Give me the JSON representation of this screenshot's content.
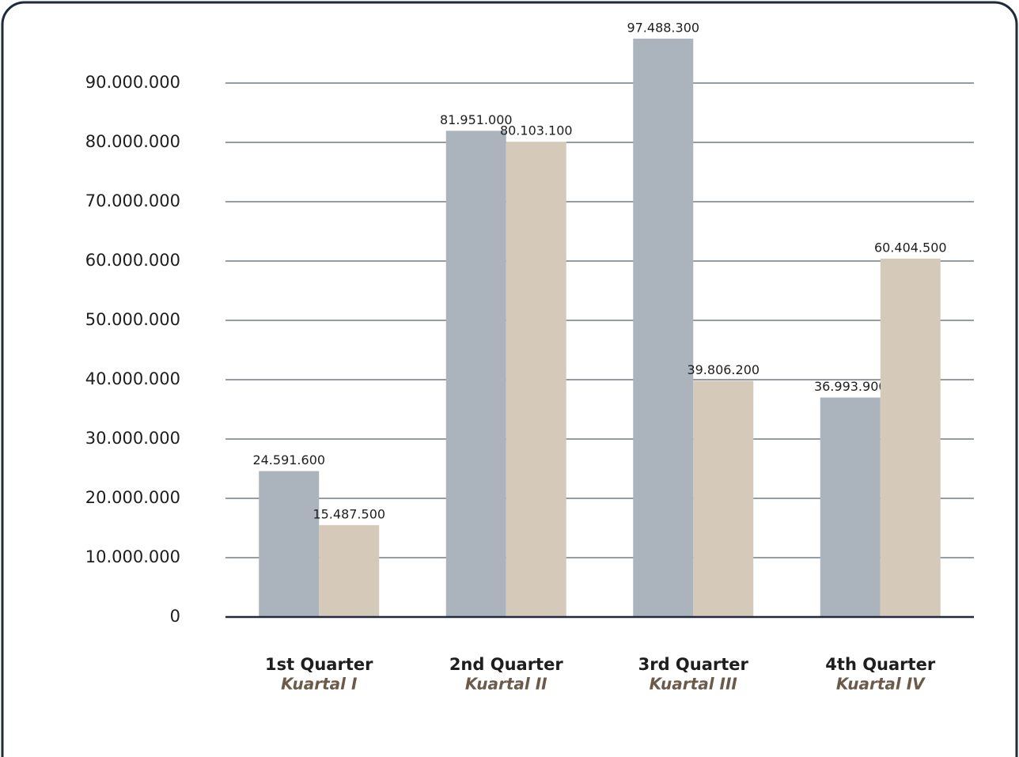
{
  "chart_data": {
    "type": "bar",
    "categories": [
      "1st Quarter",
      "2nd Quarter",
      "3rd Quarter",
      "4th Quarter"
    ],
    "category_sublabels": [
      "Kuartal I",
      "Kuartal II",
      "Kuartal III",
      "Kuartal IV"
    ],
    "series": [
      {
        "color": "#abb3bc",
        "values": [
          24591600,
          81951000,
          97488300,
          36993900
        ],
        "value_labels": [
          "24.591.600",
          "81.951.000",
          "97.488.300",
          "36.993.900"
        ]
      },
      {
        "color": "#d5c9b9",
        "values": [
          15487500,
          80103100,
          39806200,
          60404500
        ],
        "value_labels": [
          "15.487.500",
          "80.103.100",
          "39.806.200",
          "60.404.500"
        ]
      }
    ],
    "ylim": [
      0,
      100000000
    ],
    "yticks": [
      0,
      {
        "value": 10000000,
        "label": "10.000.000"
      },
      {
        "value": 20000000,
        "label": "20.000.000"
      },
      {
        "value": 30000000,
        "label": "30.000.000"
      },
      {
        "value": 40000000,
        "label": "40.000.000"
      },
      {
        "value": 50000000,
        "label": "50.000.000"
      },
      {
        "value": 60000000,
        "label": "60.000.000"
      },
      {
        "value": 70000000,
        "label": "70.000.000"
      },
      {
        "value": 80000000,
        "label": "80.000.000"
      },
      {
        "value": 90000000,
        "label": "90.000.000"
      }
    ],
    "grid": true
  }
}
